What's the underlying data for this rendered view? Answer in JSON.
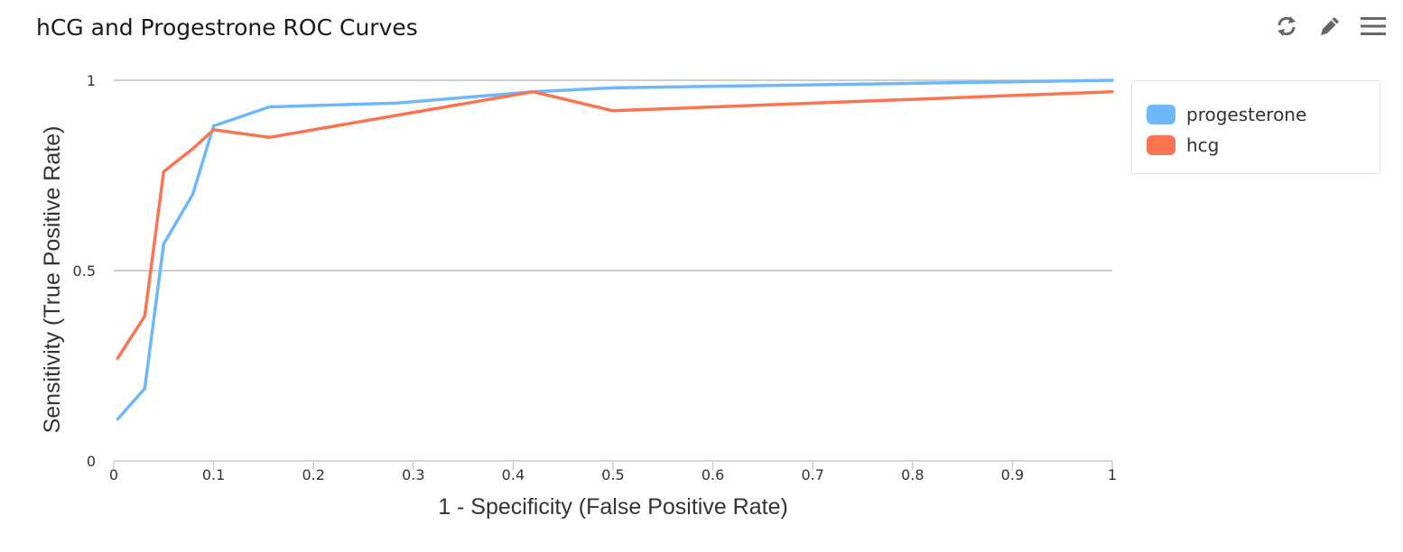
{
  "header": {
    "title": "hCG and Progestrone ROC Curves"
  },
  "toolbar": {
    "icons": [
      "refresh-icon",
      "pencil-icon",
      "menu-icon"
    ]
  },
  "colors": {
    "progesterone": "#6db8fb",
    "hcg": "#fb7452",
    "grid": "#bdbdbd",
    "axis": "#cccccc"
  },
  "chart_data": {
    "type": "line",
    "title": "hCG and Progestrone ROC Curves",
    "xlabel": "1 - Specificity (False Positive Rate)",
    "ylabel": "Sensitivity (True Positive Rate)",
    "xlim": [
      0,
      1
    ],
    "ylim": [
      0,
      1
    ],
    "x_ticks": [
      "0",
      "0.1",
      "0.2",
      "0.3",
      "0.4",
      "0.5",
      "0.6",
      "0.7",
      "0.8",
      "0.9",
      "1"
    ],
    "y_ticks": [
      "0",
      "0.5",
      "1"
    ],
    "grid": "horizontal",
    "legend_position": "right",
    "series": [
      {
        "name": "progesterone",
        "color": "#6db8fb",
        "points": [
          [
            0.004,
            0.11
          ],
          [
            0.031,
            0.19
          ],
          [
            0.05,
            0.57
          ],
          [
            0.079,
            0.7
          ],
          [
            0.1,
            0.88
          ],
          [
            0.156,
            0.93
          ],
          [
            0.284,
            0.94
          ],
          [
            0.42,
            0.97
          ],
          [
            0.5,
            0.98
          ],
          [
            1.0,
            1.0
          ]
        ]
      },
      {
        "name": "hcg",
        "color": "#fb7452",
        "points": [
          [
            0.004,
            0.27
          ],
          [
            0.031,
            0.38
          ],
          [
            0.05,
            0.76
          ],
          [
            0.079,
            0.82
          ],
          [
            0.1,
            0.87
          ],
          [
            0.156,
            0.85
          ],
          [
            0.42,
            0.97
          ],
          [
            0.5,
            0.92
          ],
          [
            1.0,
            0.97
          ]
        ]
      }
    ]
  }
}
